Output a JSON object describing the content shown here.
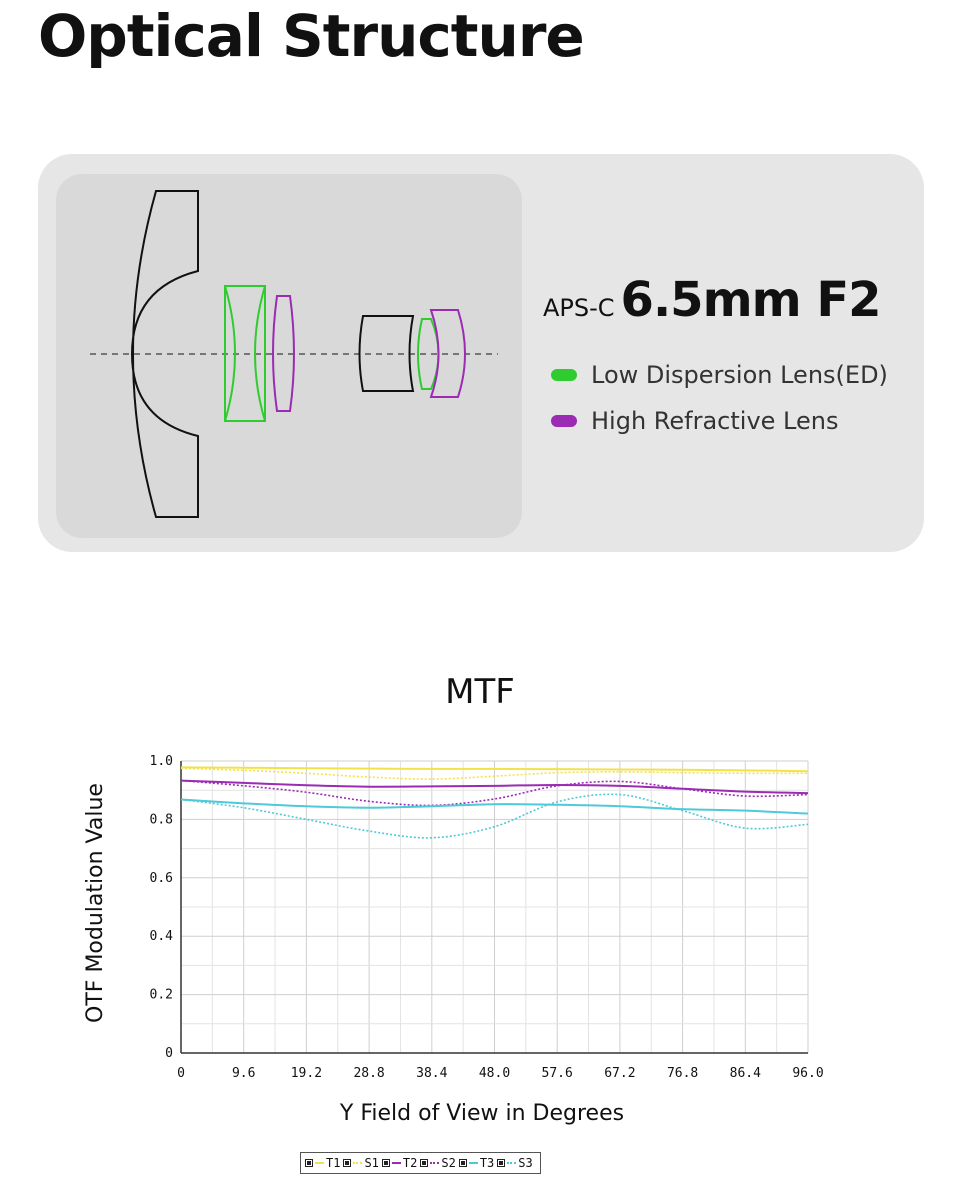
{
  "title": "Optical Structure",
  "spec": {
    "prefix": "APS-C",
    "main": "6.5mm F2"
  },
  "legend": [
    {
      "label": "Low Dispersion Lens(ED)",
      "color": "#2ecc2e"
    },
    {
      "label": "High Refractive Lens",
      "color": "#9b2bb3"
    }
  ],
  "diagram": {
    "colors": {
      "standard": "#111111",
      "ed": "#2ecc2e",
      "high_refractive": "#9b2bb3",
      "axis": "#555555"
    }
  },
  "chart_data": {
    "type": "line",
    "title": "MTF",
    "xlabel": "Y Field of View in Degrees",
    "ylabel": "OTF Modulation Value",
    "xlim": [
      0,
      96
    ],
    "ylim": [
      0,
      1
    ],
    "x_ticks": [
      "0",
      "9.6",
      "19.2",
      "28.8",
      "38.4",
      "48.0",
      "57.6",
      "67.2",
      "76.8",
      "86.4",
      "96.0"
    ],
    "y_ticks": [
      "0",
      "0.2",
      "0.4",
      "0.6",
      "0.8",
      "1.0"
    ],
    "grid": true,
    "legend_position": "bottom",
    "x": [
      0,
      9.6,
      19.2,
      28.8,
      38.4,
      48,
      57.6,
      67.2,
      76.8,
      86.4,
      96
    ],
    "series": [
      {
        "name": "T1",
        "color": "#f2e24a",
        "style": "solid",
        "values": [
          0.978,
          0.977,
          0.975,
          0.974,
          0.973,
          0.973,
          0.972,
          0.971,
          0.97,
          0.968,
          0.965
        ]
      },
      {
        "name": "S1",
        "color": "#f2e24a",
        "style": "dotted",
        "values": [
          0.975,
          0.968,
          0.958,
          0.945,
          0.938,
          0.948,
          0.96,
          0.963,
          0.96,
          0.958,
          0.958
        ]
      },
      {
        "name": "T2",
        "color": "#9b2bb3",
        "style": "solid",
        "values": [
          0.933,
          0.925,
          0.917,
          0.912,
          0.913,
          0.915,
          0.918,
          0.915,
          0.905,
          0.895,
          0.89
        ]
      },
      {
        "name": "S2",
        "color": "#9b2bb3",
        "style": "dotted",
        "values": [
          0.933,
          0.915,
          0.893,
          0.862,
          0.848,
          0.87,
          0.915,
          0.93,
          0.905,
          0.88,
          0.885
        ]
      },
      {
        "name": "T3",
        "color": "#4ec9d8",
        "style": "solid",
        "values": [
          0.868,
          0.855,
          0.845,
          0.84,
          0.845,
          0.852,
          0.85,
          0.845,
          0.835,
          0.83,
          0.82
        ]
      },
      {
        "name": "S3",
        "color": "#4ec9d8",
        "style": "dotted",
        "values": [
          0.868,
          0.84,
          0.8,
          0.76,
          0.737,
          0.775,
          0.86,
          0.885,
          0.83,
          0.77,
          0.783
        ]
      }
    ]
  }
}
